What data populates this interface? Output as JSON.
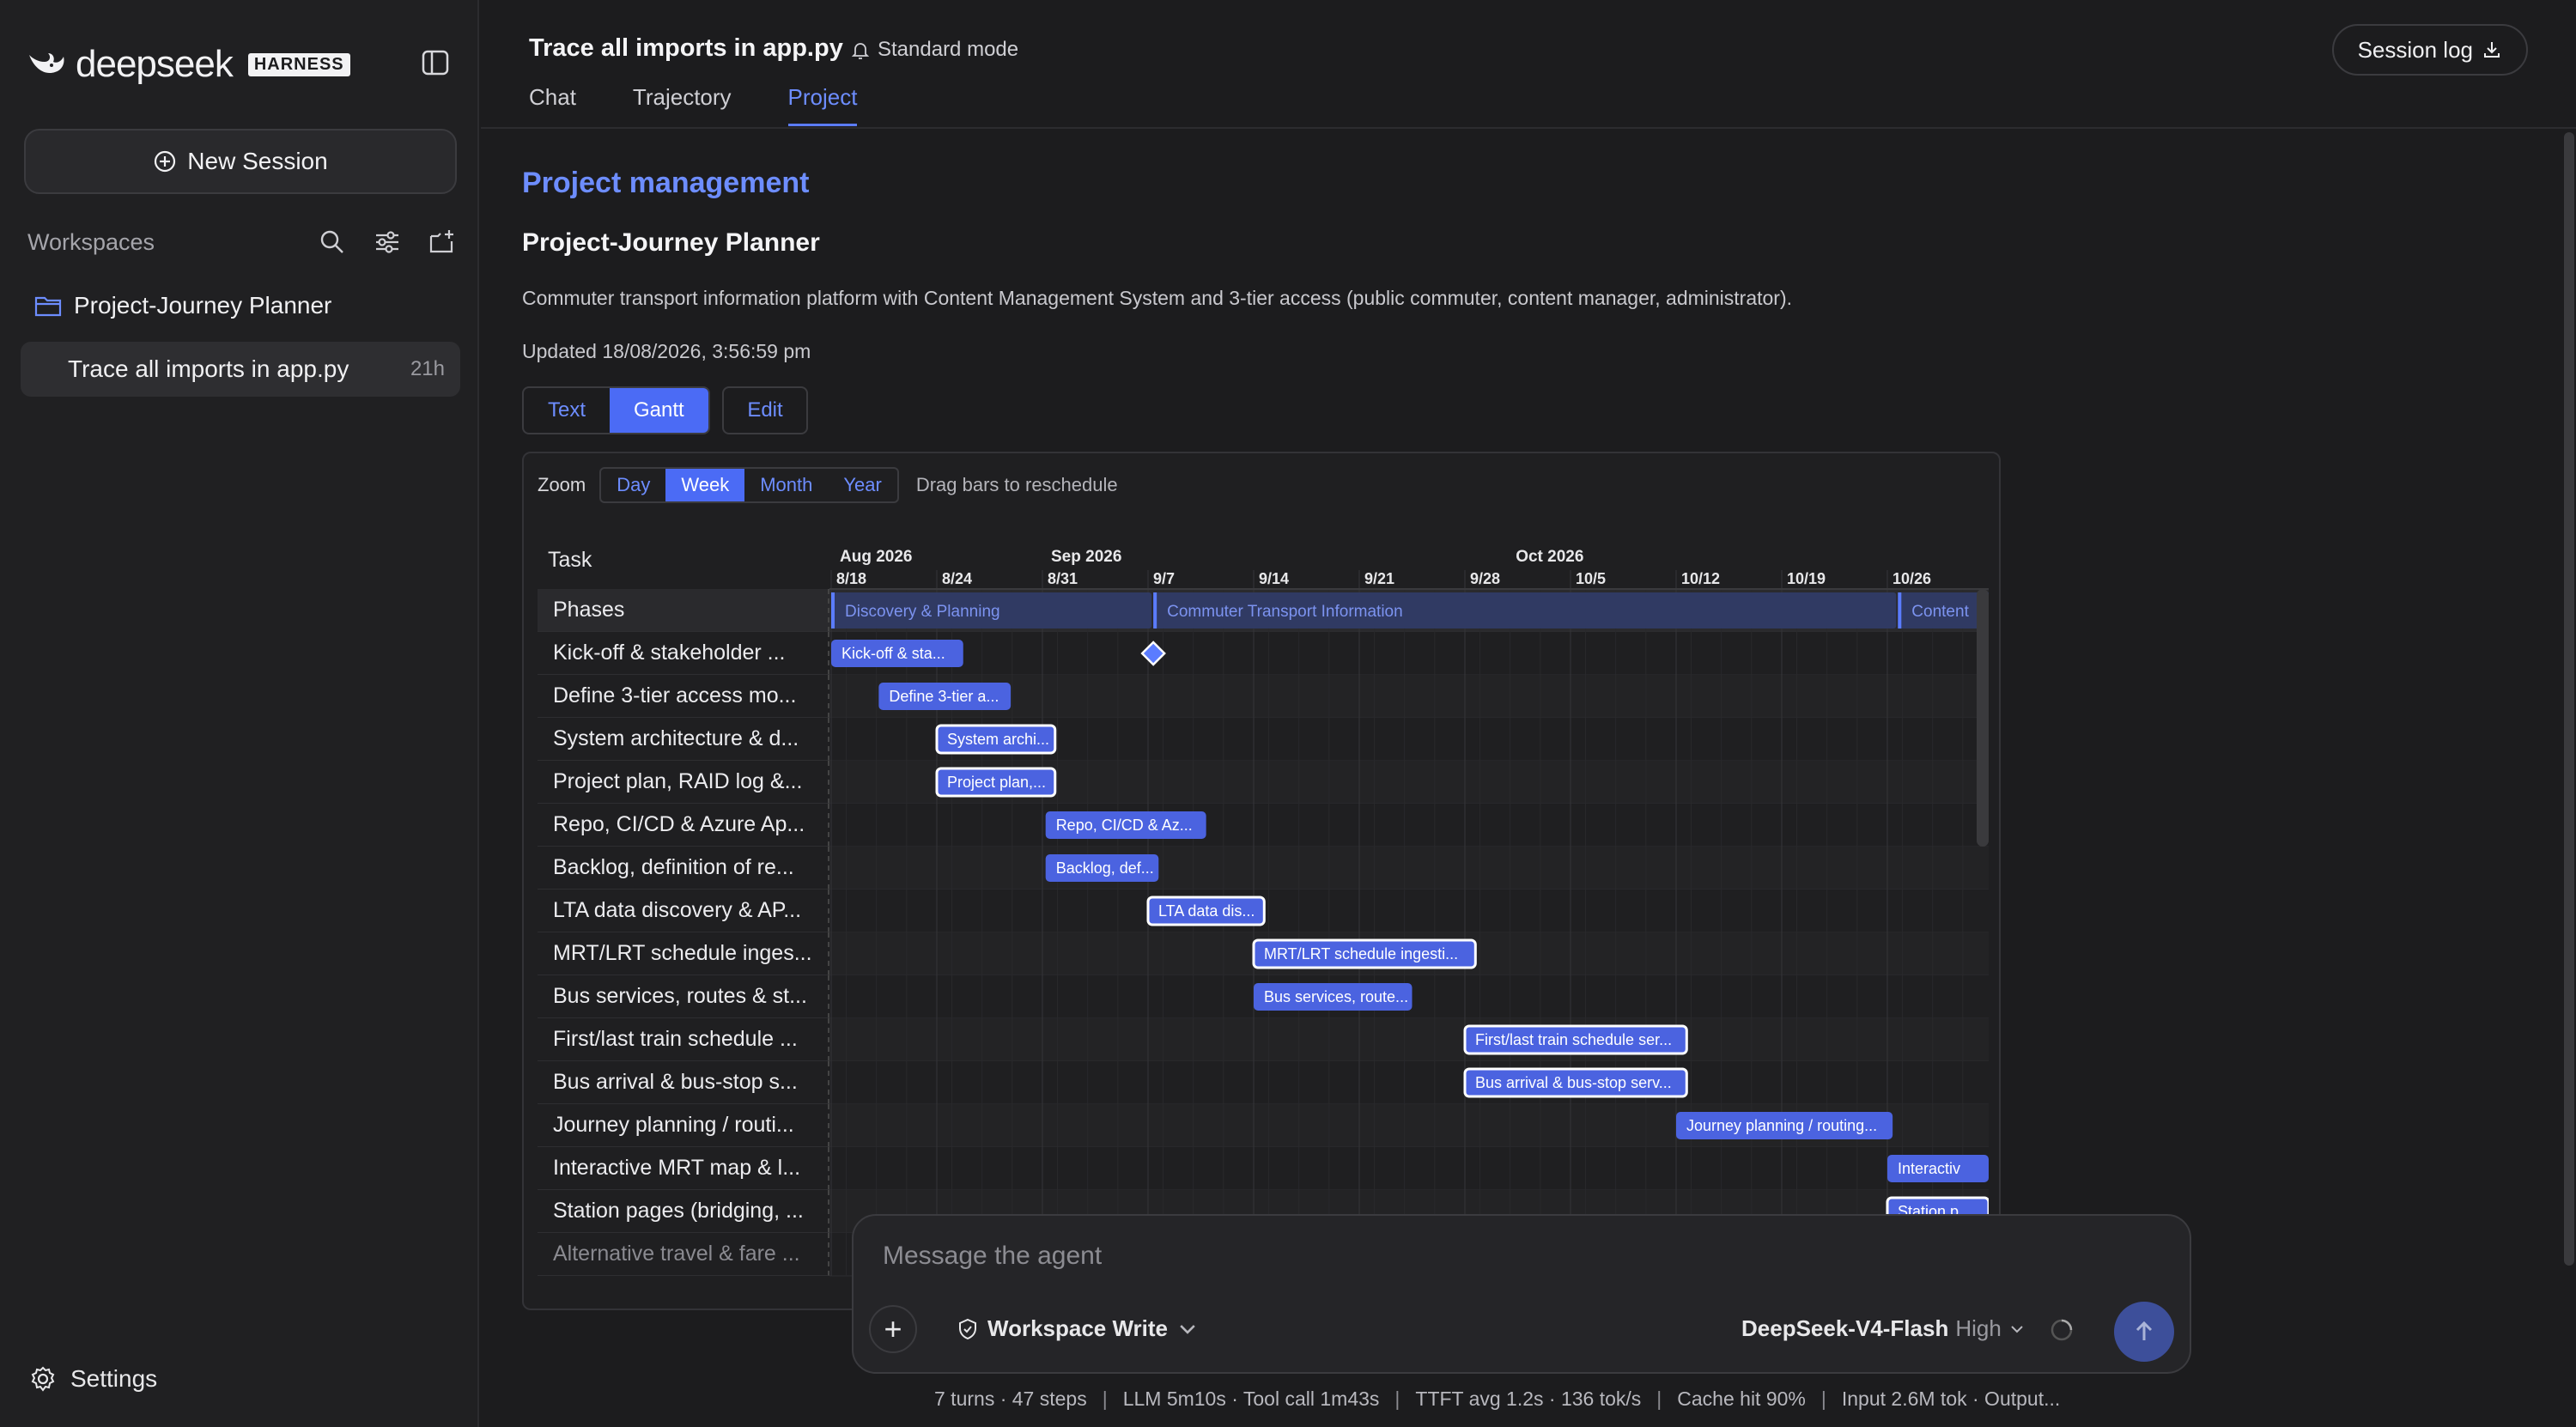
{
  "brand": {
    "name": "deepseek",
    "tag": "HARNESS"
  },
  "sidebar": {
    "new_session": "New Session",
    "workspaces_label": "Workspaces",
    "workspace": "Project-Journey Planner",
    "session": {
      "title": "Trace all imports in app.py",
      "age": "21h"
    },
    "settings": "Settings"
  },
  "header": {
    "title": "Trace all imports in app.py",
    "mode": "Standard mode",
    "tabs": [
      "Chat",
      "Trajectory",
      "Project"
    ],
    "active_tab": "Project",
    "session_log": "Session log"
  },
  "project": {
    "section_title": "Project management",
    "name": "Project-Journey Planner",
    "description": "Commuter transport information platform with Content Management System and 3-tier access (public commuter, content manager, administrator).",
    "updated": "Updated 18/08/2026, 3:56:59 pm",
    "views": [
      "Text",
      "Gantt"
    ],
    "active_view": "Gantt",
    "edit": "Edit"
  },
  "gantt": {
    "zoom_label": "Zoom",
    "zoom_options": [
      "Day",
      "Week",
      "Month",
      "Year"
    ],
    "active_zoom": "Week",
    "hint": "Drag bars to reschedule",
    "task_header": "Task",
    "months": [
      {
        "label": "Aug 2026",
        "col": 0
      },
      {
        "label": "Sep 2026",
        "col": 2
      },
      {
        "label": "Oct 2026",
        "col": 6.4
      }
    ],
    "weeks": [
      "8/18",
      "8/24",
      "8/31",
      "9/7",
      "9/14",
      "9/21",
      "9/28",
      "10/5",
      "10/12",
      "10/19",
      "10/26"
    ],
    "phase_row_label": "Phases",
    "phases": [
      {
        "label": "Discovery & Planning",
        "start": 0,
        "end": 3.05
      },
      {
        "label": "Commuter Transport Information",
        "start": 3.05,
        "end": 10.1
      },
      {
        "label": "Content",
        "start": 10.1,
        "end": 11
      }
    ],
    "tasks": [
      {
        "label": "Kick-off & stakeholder ...",
        "bar": "Kick-off & sta...",
        "start": 0,
        "end": 1.25,
        "selected": false,
        "milestone": 3.05
      },
      {
        "label": "Define 3-tier access mo...",
        "bar": "Define 3-tier a...",
        "start": 0.45,
        "end": 1.7,
        "selected": false
      },
      {
        "label": "System architecture & d...",
        "bar": "System archi...",
        "start": 1.0,
        "end": 2.12,
        "selected": true
      },
      {
        "label": "Project plan, RAID log &...",
        "bar": "Project plan,...",
        "start": 1.0,
        "end": 2.12,
        "selected": true
      },
      {
        "label": "Repo, CI/CD & Azure Ap...",
        "bar": "Repo, CI/CD & Az...",
        "start": 2.03,
        "end": 3.55,
        "selected": false
      },
      {
        "label": "Backlog, definition of re...",
        "bar": "Backlog, def...",
        "start": 2.03,
        "end": 3.1,
        "selected": false
      },
      {
        "label": "LTA data discovery & AP...",
        "bar": "LTA data dis...",
        "start": 3.0,
        "end": 4.1,
        "selected": true
      },
      {
        "label": "MRT/LRT schedule inges...",
        "bar": "MRT/LRT schedule ingesti...",
        "start": 4.0,
        "end": 6.1,
        "selected": true
      },
      {
        "label": "Bus services, routes & st...",
        "bar": "Bus services, route...",
        "start": 4.0,
        "end": 5.5,
        "selected": false
      },
      {
        "label": "First/last train schedule ...",
        "bar": "First/last train schedule ser...",
        "start": 6.0,
        "end": 8.1,
        "selected": true
      },
      {
        "label": "Bus arrival & bus-stop s...",
        "bar": "Bus arrival & bus-stop serv...",
        "start": 6.0,
        "end": 8.1,
        "selected": true
      },
      {
        "label": "Journey planning / routi...",
        "bar": "Journey planning / routing...",
        "start": 8.0,
        "end": 10.05,
        "selected": false
      },
      {
        "label": "Interactive MRT map & l...",
        "bar": "Interactiv",
        "start": 10.0,
        "end": 11,
        "selected": false
      },
      {
        "label": "Station pages (bridging, ...",
        "bar": "Station p",
        "start": 10.0,
        "end": 11,
        "selected": true
      },
      {
        "label": "Alternative travel & fare ...",
        "bar": "",
        "start": 0,
        "end": 0,
        "selected": false,
        "fade": true
      }
    ]
  },
  "composer": {
    "placeholder": "Message the agent",
    "permission": "Workspace Write",
    "model": "DeepSeek-V4-Flash",
    "level": "High"
  },
  "stats": [
    "7 turns · 47 steps",
    "LLM 5m10s · Tool call 1m43s",
    "TTFT avg 1.2s · 136 tok/s",
    "Cache hit 90%",
    "Input 2.6M tok · Output..."
  ],
  "colors": {
    "accent": "#5b7cff",
    "bar": "#4b63e0",
    "phase": "#33406f"
  }
}
